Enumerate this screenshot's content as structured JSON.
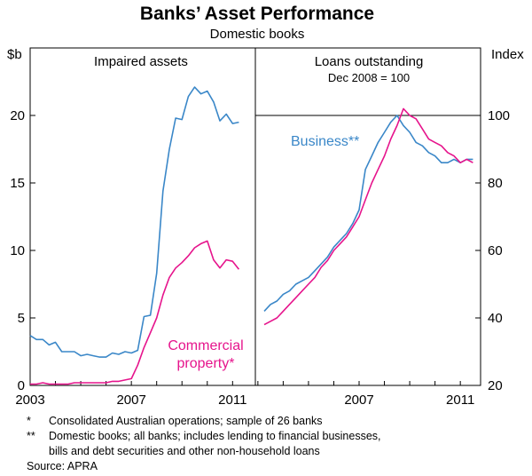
{
  "title": "Banks’ Asset Performance",
  "subtitle": "Domestic books",
  "left_panel": {
    "title": "Impaired assets",
    "y_unit": "$b"
  },
  "right_panel": {
    "title": "Loans outstanding",
    "subtitle": "Dec 2008 = 100",
    "y_unit": "Index"
  },
  "series_labels": {
    "business": "Business**",
    "commercial_line1": "Commercial",
    "commercial_line2": "property*"
  },
  "footnotes": [
    {
      "marker": "*",
      "text": "Consolidated Australian operations; sample of 26 banks"
    },
    {
      "marker": "**",
      "text": "Domestic books; all banks; includes lending to financial businesses,"
    },
    {
      "marker": "",
      "text": "bills and debt securities and other non-household loans"
    }
  ],
  "source": "Source: APRA",
  "colors": {
    "business": "#3a87c8",
    "commercial": "#e6148c",
    "axis": "#000000"
  },
  "chart_data": [
    {
      "type": "line",
      "title": "Impaired assets",
      "ylabel": "$b",
      "ylim": [
        0,
        25
      ],
      "yticks": [
        0,
        5,
        10,
        15,
        20
      ],
      "xlim": [
        2003,
        2011.9
      ],
      "xticks": [
        2003,
        2007,
        2011
      ],
      "series": [
        {
          "name": "Business**",
          "x": [
            2003.0,
            2003.25,
            2003.5,
            2003.75,
            2004.0,
            2004.25,
            2004.5,
            2004.75,
            2005.0,
            2005.25,
            2005.5,
            2005.75,
            2006.0,
            2006.25,
            2006.5,
            2006.75,
            2007.0,
            2007.25,
            2007.5,
            2007.75,
            2008.0,
            2008.25,
            2008.5,
            2008.75,
            2009.0,
            2009.25,
            2009.5,
            2009.75,
            2010.0,
            2010.25,
            2010.5,
            2010.75,
            2011.0,
            2011.25
          ],
          "values": [
            3.7,
            3.4,
            3.4,
            3.0,
            3.2,
            2.5,
            2.5,
            2.5,
            2.2,
            2.3,
            2.2,
            2.1,
            2.1,
            2.4,
            2.3,
            2.5,
            2.4,
            2.6,
            5.1,
            5.2,
            8.3,
            14.4,
            17.5,
            19.8,
            19.7,
            21.4,
            22.1,
            21.6,
            21.8,
            21.0,
            19.6,
            20.1,
            19.4,
            19.5
          ]
        },
        {
          "name": "Commercial property*",
          "x": [
            2003.0,
            2003.25,
            2003.5,
            2003.75,
            2004.0,
            2004.25,
            2004.5,
            2004.75,
            2005.0,
            2005.25,
            2005.5,
            2005.75,
            2006.0,
            2006.25,
            2006.5,
            2006.75,
            2007.0,
            2007.25,
            2007.5,
            2007.75,
            2008.0,
            2008.25,
            2008.5,
            2008.75,
            2009.0,
            2009.25,
            2009.5,
            2009.75,
            2010.0,
            2010.25,
            2010.5,
            2010.75,
            2011.0,
            2011.25
          ],
          "values": [
            0.1,
            0.1,
            0.2,
            0.1,
            0.1,
            0.1,
            0.1,
            0.2,
            0.2,
            0.2,
            0.2,
            0.2,
            0.2,
            0.3,
            0.3,
            0.4,
            0.5,
            1.5,
            2.8,
            3.9,
            5.0,
            6.7,
            8.0,
            8.7,
            9.1,
            9.6,
            10.2,
            10.5,
            10.7,
            9.3,
            8.7,
            9.3,
            9.2,
            8.6
          ]
        }
      ]
    },
    {
      "type": "line",
      "title": "Loans outstanding",
      "subtitle": "Dec 2008 = 100",
      "ylabel": "Index",
      "ylim": [
        20,
        120
      ],
      "yticks": [
        20,
        40,
        60,
        80,
        100
      ],
      "reference_line": 100,
      "xlim": [
        2002.9,
        2011.8
      ],
      "xticks": [
        2007,
        2011
      ],
      "series": [
        {
          "name": "Business**",
          "x": [
            2003.25,
            2003.5,
            2003.75,
            2004.0,
            2004.25,
            2004.5,
            2004.75,
            2005.0,
            2005.25,
            2005.5,
            2005.75,
            2006.0,
            2006.25,
            2006.5,
            2006.75,
            2007.0,
            2007.25,
            2007.5,
            2007.75,
            2008.0,
            2008.25,
            2008.5,
            2008.75,
            2009.0,
            2009.25,
            2009.5,
            2009.75,
            2010.0,
            2010.25,
            2010.5,
            2010.75,
            2011.0,
            2011.25,
            2011.5
          ],
          "values": [
            42,
            44,
            45,
            47,
            48,
            50,
            51,
            52,
            54,
            56,
            58,
            61,
            63,
            65,
            68,
            72,
            84,
            88,
            92,
            95,
            98,
            100,
            97,
            95,
            92,
            91,
            89,
            88,
            86,
            86,
            87,
            86,
            87,
            87
          ]
        },
        {
          "name": "Commercial property*",
          "x": [
            2003.25,
            2003.5,
            2003.75,
            2004.0,
            2004.25,
            2004.5,
            2004.75,
            2005.0,
            2005.25,
            2005.5,
            2005.75,
            2006.0,
            2006.25,
            2006.5,
            2006.75,
            2007.0,
            2007.25,
            2007.5,
            2007.75,
            2008.0,
            2008.25,
            2008.5,
            2008.75,
            2009.0,
            2009.25,
            2009.5,
            2009.75,
            2010.0,
            2010.25,
            2010.5,
            2010.75,
            2011.0,
            2011.25,
            2011.5
          ],
          "values": [
            38,
            39,
            40,
            42,
            44,
            46,
            48,
            50,
            52,
            55,
            57,
            60,
            62,
            64,
            67,
            70,
            75,
            80,
            84,
            88,
            93,
            97,
            102,
            100,
            99,
            96,
            93,
            92,
            91,
            89,
            88,
            86,
            87,
            86
          ]
        }
      ]
    }
  ]
}
